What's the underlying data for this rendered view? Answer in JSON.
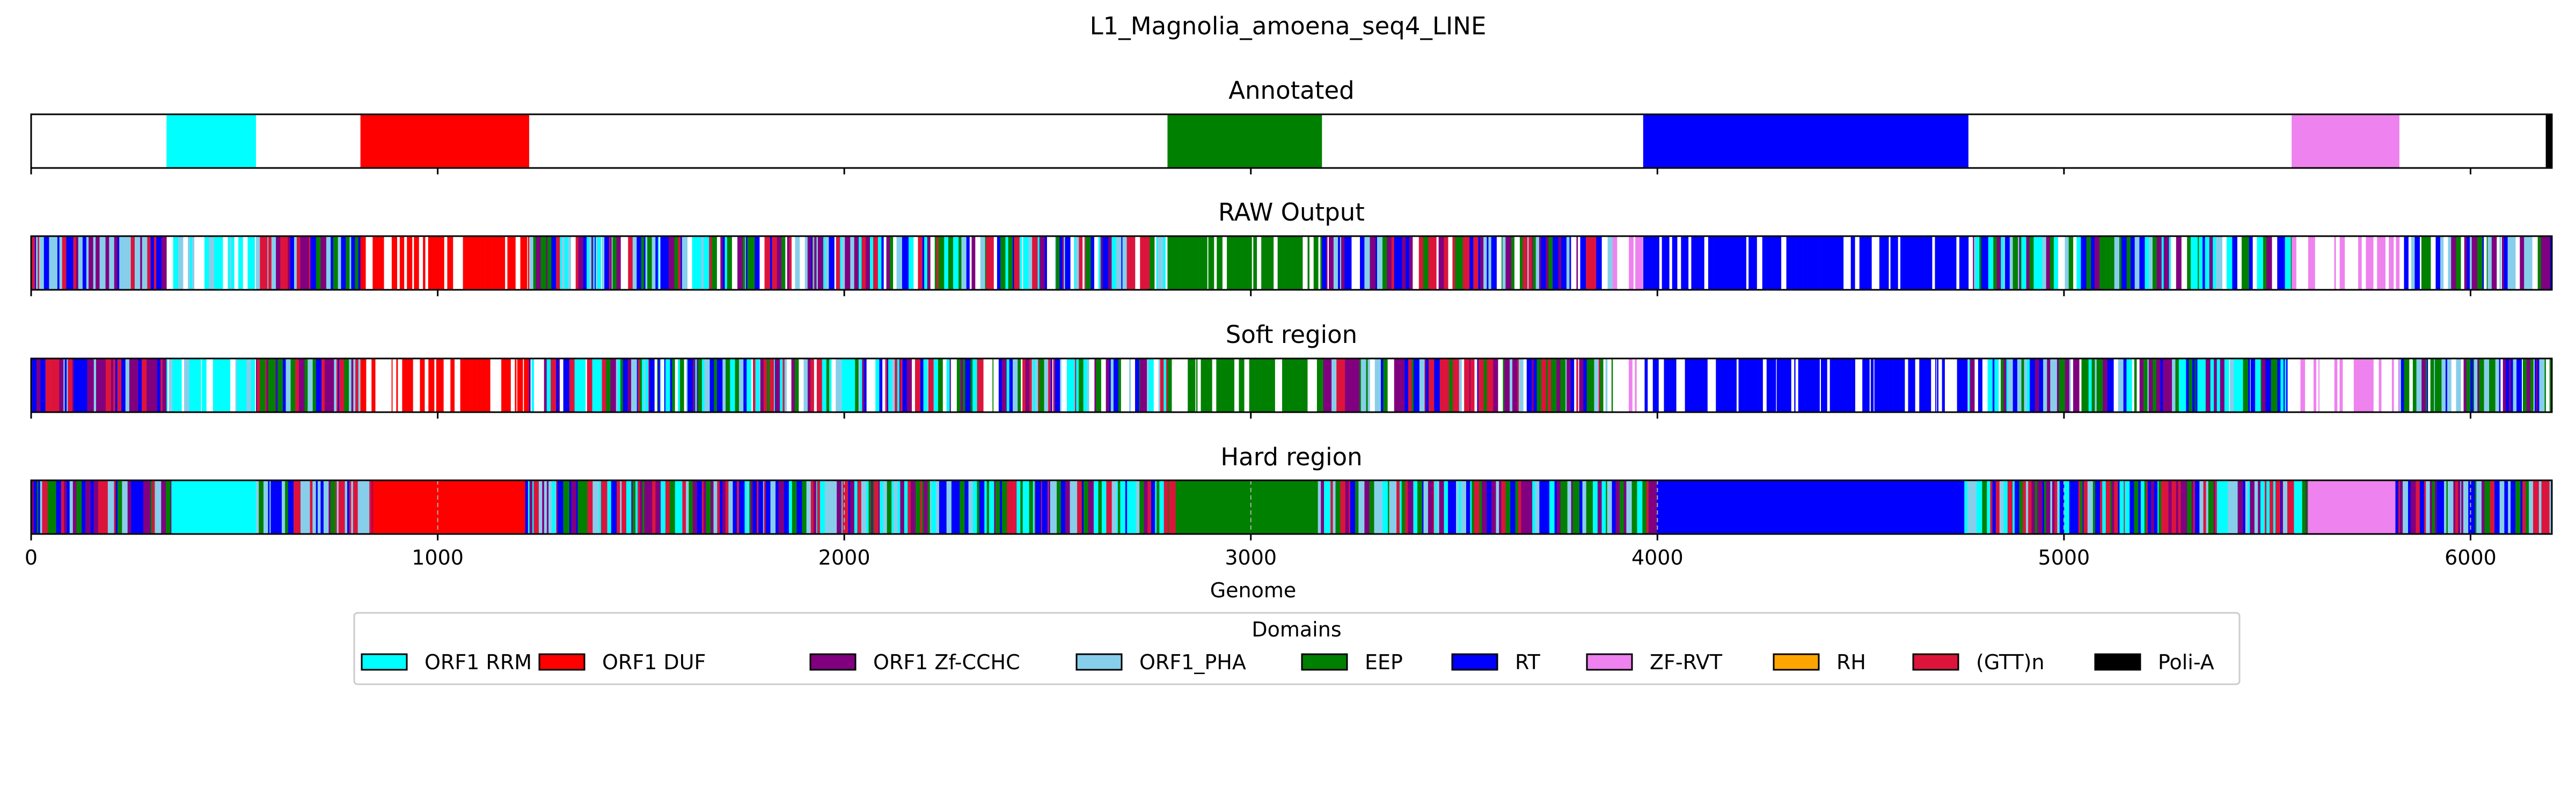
{
  "chart_data": {
    "type": "bar",
    "title": "L1_Magnolia_amoena_seq4_LINE",
    "xlabel": "Genome",
    "xlim": [
      0,
      6200
    ],
    "xticks": [
      0,
      1000,
      2000,
      3000,
      4000,
      5000,
      6000
    ],
    "legend": {
      "title": "Domains",
      "placement": "bottom-center",
      "entries": [
        {
          "name": "ORF1 RRM",
          "color": "#00ffff"
        },
        {
          "name": "ORF1 DUF",
          "color": "#ff0000"
        },
        {
          "name": "ORF1 Zf-CCHC",
          "color": "#800080"
        },
        {
          "name": "ORF1_PHA",
          "color": "#87ceeb"
        },
        {
          "name": "EEP",
          "color": "#008000"
        },
        {
          "name": "RT",
          "color": "#0000ff"
        },
        {
          "name": "ZF-RVT",
          "color": "#ee82ee"
        },
        {
          "name": "RH",
          "color": "#ffa500"
        },
        {
          "name": "(GTT)n",
          "color": "#dc143c"
        },
        {
          "name": "Poli-A",
          "color": "#000000"
        }
      ]
    },
    "panels": [
      {
        "title": "Annotated",
        "grid": false,
        "segments": [
          {
            "domain": "ORF1 RRM",
            "start": 333,
            "end": 553
          },
          {
            "domain": "ORF1 DUF",
            "start": 810,
            "end": 1225
          },
          {
            "domain": "EEP",
            "start": 2795,
            "end": 3175
          },
          {
            "domain": "RT",
            "start": 3965,
            "end": 4765
          },
          {
            "domain": "ZF-RVT",
            "start": 5560,
            "end": 5825
          },
          {
            "domain": "Poli-A",
            "start": 6185,
            "end": 6200
          }
        ]
      },
      {
        "title": "RAW Output",
        "grid": false,
        "regions": [
          {
            "start": 0,
            "end": 333,
            "colors": [
              "#0000ff",
              "#800080",
              "#87ceeb",
              "#dc143c"
            ]
          },
          {
            "start": 333,
            "end": 553,
            "colors": [
              "#00ffff",
              "#ffffff",
              "#00ffff",
              "#87ceeb"
            ]
          },
          {
            "start": 553,
            "end": 810,
            "colors": [
              "#0000ff",
              "#800080",
              "#008000",
              "#87ceeb",
              "#dc143c"
            ]
          },
          {
            "start": 810,
            "end": 1225,
            "colors": [
              "#ff0000",
              "#ffffff",
              "#ffffff",
              "#ff0000"
            ]
          },
          {
            "start": 1225,
            "end": 2795,
            "colors": [
              "#0000ff",
              "#800080",
              "#87ceeb",
              "#008000",
              "#ffffff",
              "#dc143c",
              "#00ffff"
            ]
          },
          {
            "start": 2795,
            "end": 3175,
            "colors": [
              "#008000",
              "#008000",
              "#ffffff",
              "#008000"
            ]
          },
          {
            "start": 3175,
            "end": 3890,
            "colors": [
              "#0000ff",
              "#800080",
              "#87ceeb",
              "#ffffff",
              "#008000",
              "#dc143c"
            ]
          },
          {
            "start": 3890,
            "end": 3965,
            "colors": [
              "#ffffff",
              "#ee82ee",
              "#ffffff"
            ]
          },
          {
            "start": 3965,
            "end": 4765,
            "colors": [
              "#0000ff",
              "#0000ff",
              "#ffffff",
              "#0000ff"
            ]
          },
          {
            "start": 4765,
            "end": 5560,
            "colors": [
              "#0000ff",
              "#ffffff",
              "#800080",
              "#87ceeb",
              "#008000",
              "#00ffff"
            ]
          },
          {
            "start": 5560,
            "end": 5825,
            "colors": [
              "#ffffff",
              "#ee82ee",
              "#ffffff"
            ]
          },
          {
            "start": 5825,
            "end": 6200,
            "colors": [
              "#0000ff",
              "#800080",
              "#008000",
              "#87ceeb",
              "#ffffff"
            ]
          }
        ]
      },
      {
        "title": "Soft region",
        "grid": false,
        "regions": [
          {
            "start": 0,
            "end": 333,
            "colors": [
              "#0000ff",
              "#800080",
              "#87ceeb",
              "#dc143c"
            ]
          },
          {
            "start": 333,
            "end": 553,
            "colors": [
              "#00ffff",
              "#ffffff",
              "#00ffff",
              "#87ceeb"
            ]
          },
          {
            "start": 553,
            "end": 810,
            "colors": [
              "#0000ff",
              "#800080",
              "#008000",
              "#87ceeb",
              "#dc143c"
            ]
          },
          {
            "start": 810,
            "end": 1225,
            "colors": [
              "#ff0000",
              "#ffffff",
              "#ffffff",
              "#ff0000"
            ]
          },
          {
            "start": 1225,
            "end": 2795,
            "colors": [
              "#0000ff",
              "#800080",
              "#87ceeb",
              "#008000",
              "#ffffff",
              "#dc143c",
              "#00ffff"
            ]
          },
          {
            "start": 2795,
            "end": 3175,
            "colors": [
              "#008000",
              "#008000",
              "#ffffff",
              "#008000"
            ]
          },
          {
            "start": 3175,
            "end": 3890,
            "colors": [
              "#0000ff",
              "#800080",
              "#87ceeb",
              "#ffffff",
              "#008000",
              "#dc143c"
            ]
          },
          {
            "start": 3890,
            "end": 3965,
            "colors": [
              "#ffffff",
              "#ee82ee",
              "#ffffff"
            ]
          },
          {
            "start": 3965,
            "end": 4765,
            "colors": [
              "#0000ff",
              "#0000ff",
              "#ffffff",
              "#0000ff"
            ]
          },
          {
            "start": 4765,
            "end": 5560,
            "colors": [
              "#0000ff",
              "#ffffff",
              "#800080",
              "#87ceeb",
              "#008000",
              "#00ffff"
            ]
          },
          {
            "start": 5560,
            "end": 5825,
            "colors": [
              "#ffffff",
              "#ee82ee",
              "#ffffff"
            ]
          },
          {
            "start": 5825,
            "end": 6200,
            "colors": [
              "#0000ff",
              "#800080",
              "#008000",
              "#87ceeb",
              "#ffffff"
            ]
          }
        ]
      },
      {
        "title": "Hard region",
        "grid": true,
        "segments": [
          {
            "domain": "ORF1 RRM",
            "start": 345,
            "end": 553
          },
          {
            "domain": "ORF1 DUF",
            "start": 840,
            "end": 1215
          },
          {
            "domain": "EEP",
            "start": 2815,
            "end": 3165
          },
          {
            "domain": "RT",
            "start": 4000,
            "end": 4755
          },
          {
            "domain": "ZF-RVT",
            "start": 5600,
            "end": 5815
          }
        ],
        "regions": [
          {
            "start": 0,
            "end": 345,
            "colors": [
              "#0000ff",
              "#800080",
              "#87ceeb",
              "#dc143c",
              "#008000"
            ]
          },
          {
            "start": 553,
            "end": 840,
            "colors": [
              "#0000ff",
              "#800080",
              "#008000",
              "#87ceeb",
              "#dc143c"
            ]
          },
          {
            "start": 1215,
            "end": 2815,
            "colors": [
              "#0000ff",
              "#800080",
              "#87ceeb",
              "#008000",
              "#dc143c",
              "#00ffff"
            ]
          },
          {
            "start": 3165,
            "end": 4000,
            "colors": [
              "#0000ff",
              "#800080",
              "#87ceeb",
              "#008000",
              "#dc143c",
              "#00ffff"
            ]
          },
          {
            "start": 4755,
            "end": 5600,
            "colors": [
              "#008000",
              "#0000ff",
              "#800080",
              "#87ceeb",
              "#00ffff",
              "#dc143c"
            ]
          },
          {
            "start": 5815,
            "end": 6200,
            "colors": [
              "#0000ff",
              "#800080",
              "#008000",
              "#87ceeb",
              "#dc143c"
            ]
          }
        ]
      }
    ]
  }
}
